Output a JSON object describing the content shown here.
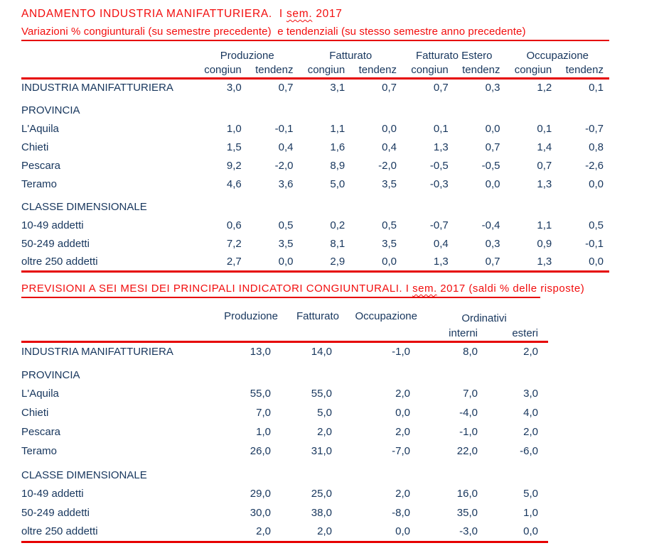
{
  "colors": {
    "red_text": "#f20d0d",
    "red_line": "#e60000",
    "navy_text": "#17365d"
  },
  "section1": {
    "title": {
      "main": "ANDAMENTO INDUSTRIA MANIFATTURIERA.",
      "pre": "  I ",
      "wavy": "sem.",
      "post": " 2017"
    },
    "subtitle": "Variazioni % congiunturali (su semestre precedente)  e tendenziali (su stesso semestre anno precedente)",
    "table": {
      "groups": [
        "Produzione",
        "Fatturato",
        "Fatturato Estero",
        "Occupazione"
      ],
      "subheaders": [
        "congiun",
        "tendenz",
        "congiun",
        "tendenz",
        "congiun",
        "tendenz",
        "congiun",
        "tendenz"
      ],
      "rows": [
        {
          "label": "INDUSTRIA MANIFATTURIERA",
          "section": false,
          "values": [
            "3,0",
            "0,7",
            "3,1",
            "0,7",
            "0,7",
            "0,3",
            "1,2",
            "0,1"
          ]
        },
        {
          "label": "PROVINCIA",
          "section": true,
          "values": []
        },
        {
          "label": "L'Aquila",
          "section": false,
          "values": [
            "1,0",
            "-0,1",
            "1,1",
            "0,0",
            "0,1",
            "0,0",
            "0,1",
            "-0,7"
          ]
        },
        {
          "label": "Chieti",
          "section": false,
          "values": [
            "1,5",
            "0,4",
            "1,6",
            "0,4",
            "1,3",
            "0,7",
            "1,4",
            "0,8"
          ]
        },
        {
          "label": "Pescara",
          "section": false,
          "values": [
            "9,2",
            "-2,0",
            "8,9",
            "-2,0",
            "-0,5",
            "-0,5",
            "0,7",
            "-2,6"
          ]
        },
        {
          "label": "Teramo",
          "section": false,
          "values": [
            "4,6",
            "3,6",
            "5,0",
            "3,5",
            "-0,3",
            "0,0",
            "1,3",
            "0,0"
          ]
        },
        {
          "label": "CLASSE DIMENSIONALE",
          "section": true,
          "values": []
        },
        {
          "label": "10-49 addetti",
          "section": false,
          "values": [
            "0,6",
            "0,5",
            "0,2",
            "0,5",
            "-0,7",
            "-0,4",
            "1,1",
            "0,5"
          ]
        },
        {
          "label": "50-249 addetti",
          "section": false,
          "values": [
            "7,2",
            "3,5",
            "8,1",
            "3,5",
            "0,4",
            "0,3",
            "0,9",
            "-0,1"
          ]
        },
        {
          "label": "oltre 250 addetti",
          "section": false,
          "values": [
            "2,7",
            "0,0",
            "2,9",
            "0,0",
            "1,3",
            "0,7",
            "1,3",
            "0,0"
          ]
        }
      ]
    }
  },
  "section2": {
    "title": {
      "underlined_a": "PREVISIONI A SEI MESI DEI PRINCIPALI INDICATORI CONGIUNTURALI. I ",
      "wavy": "sem.",
      "underlined_b": " 2017 (saldi % delle ",
      "tail": "risposte)"
    },
    "table": {
      "headers": [
        "Produzione",
        "Fatturato",
        "Occupazione"
      ],
      "group": "Ordinativi",
      "group_sub": [
        "interni",
        "esteri"
      ],
      "rows": [
        {
          "label": "INDUSTRIA MANIFATTURIERA",
          "section": false,
          "values": [
            "13,0",
            "14,0",
            "-1,0",
            "8,0",
            "2,0"
          ]
        },
        {
          "label": "PROVINCIA",
          "section": true,
          "values": []
        },
        {
          "label": "L'Aquila",
          "section": false,
          "values": [
            "55,0",
            "55,0",
            "2,0",
            "7,0",
            "3,0"
          ]
        },
        {
          "label": "Chieti",
          "section": false,
          "values": [
            "7,0",
            "5,0",
            "0,0",
            "-4,0",
            "4,0"
          ]
        },
        {
          "label": "Pescara",
          "section": false,
          "values": [
            "1,0",
            "2,0",
            "2,0",
            "-1,0",
            "2,0"
          ]
        },
        {
          "label": "Teramo",
          "section": false,
          "values": [
            "26,0",
            "31,0",
            "-7,0",
            "22,0",
            "-6,0"
          ]
        },
        {
          "label": "CLASSE DIMENSIONALE",
          "section": true,
          "values": []
        },
        {
          "label": "10-49 addetti",
          "section": false,
          "values": [
            "29,0",
            "25,0",
            "2,0",
            "16,0",
            "5,0"
          ]
        },
        {
          "label": "50-249 addetti",
          "section": false,
          "values": [
            "30,0",
            "38,0",
            "-8,0",
            "35,0",
            "1,0"
          ]
        },
        {
          "label": "oltre 250 addetti",
          "section": false,
          "values": [
            "2,0",
            "2,0",
            "0,0",
            "-3,0",
            "0,0"
          ]
        }
      ]
    }
  }
}
